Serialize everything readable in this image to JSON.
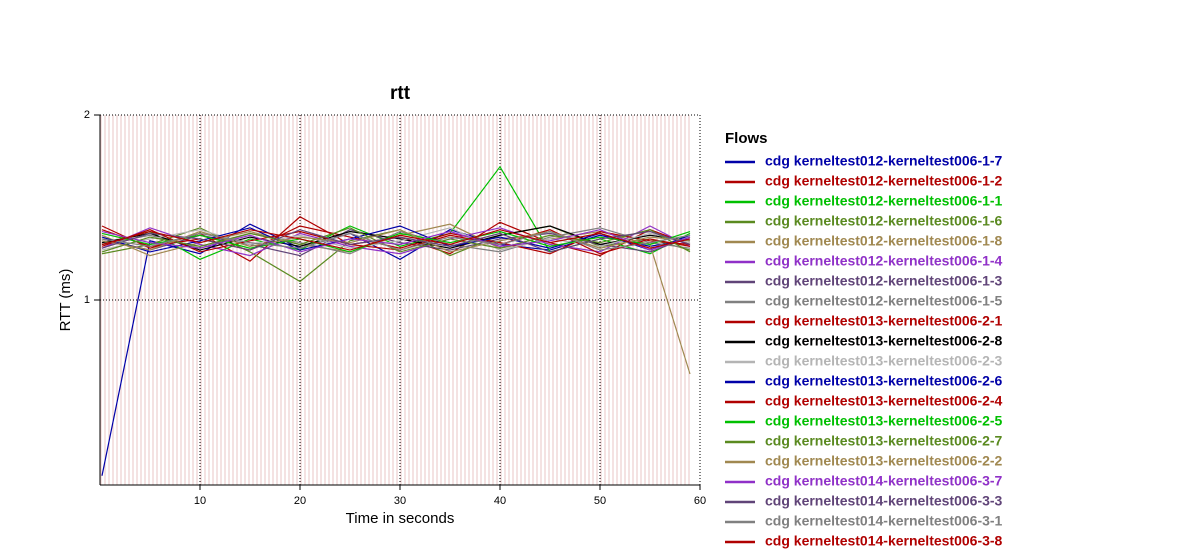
{
  "chart_data": {
    "type": "line",
    "title": "rtt",
    "x_label": "Time in seconds",
    "y_label": "RTT (ms)",
    "x": [
      0.2,
      5,
      10,
      15,
      20,
      25,
      30,
      35,
      40,
      45,
      50,
      55,
      59
    ],
    "xlim": [
      0,
      60
    ],
    "xticks": [
      10,
      20,
      30,
      40,
      50,
      60
    ],
    "ylim": [
      0,
      2
    ],
    "yticks": [
      1,
      2
    ],
    "grid": true,
    "legend_title": "Flows",
    "series": [
      {
        "name": "cdg kerneltest012-kerneltest006-1-7",
        "color": "#0000a8",
        "values": [
          0.05,
          1.32,
          1.25,
          1.41,
          1.28,
          1.36,
          1.22,
          1.38,
          1.3,
          1.27,
          1.35,
          1.29,
          1.33
        ]
      },
      {
        "name": "cdg kerneltest012-kerneltest006-1-2",
        "color": "#b00000",
        "values": [
          1.4,
          1.28,
          1.36,
          1.21,
          1.45,
          1.3,
          1.34,
          1.25,
          1.42,
          1.31,
          1.24,
          1.38,
          1.3
        ]
      },
      {
        "name": "cdg kerneltest012-kerneltest006-1-1",
        "color": "#00c000",
        "values": [
          1.3,
          1.37,
          1.22,
          1.33,
          1.27,
          1.4,
          1.29,
          1.36,
          1.72,
          1.26,
          1.33,
          1.25,
          1.36
        ]
      },
      {
        "name": "cdg kerneltest012-kerneltest006-1-6",
        "color": "#5a8a20",
        "values": [
          1.25,
          1.3,
          1.39,
          1.26,
          1.1,
          1.32,
          1.38,
          1.24,
          1.35,
          1.4,
          1.29,
          1.33,
          1.27
        ]
      },
      {
        "name": "cdg kerneltest012-kerneltest006-1-8",
        "color": "#a08850",
        "values": [
          1.35,
          1.24,
          1.31,
          1.37,
          1.3,
          1.26,
          1.35,
          1.41,
          1.28,
          1.33,
          1.37,
          1.3,
          0.6
        ]
      },
      {
        "name": "cdg kerneltest012-kerneltest006-1-4",
        "color": "#9030c8",
        "values": [
          1.28,
          1.39,
          1.3,
          1.24,
          1.36,
          1.29,
          1.25,
          1.33,
          1.39,
          1.3,
          1.26,
          1.4,
          1.29
        ]
      },
      {
        "name": "cdg kerneltest012-kerneltest006-1-3",
        "color": "#604478",
        "values": [
          1.33,
          1.27,
          1.35,
          1.3,
          1.24,
          1.38,
          1.31,
          1.27,
          1.33,
          1.36,
          1.3,
          1.26,
          1.34
        ]
      },
      {
        "name": "cdg kerneltest012-kerneltest006-1-5",
        "color": "#808080",
        "values": [
          1.3,
          1.35,
          1.28,
          1.36,
          1.31,
          1.25,
          1.37,
          1.3,
          1.26,
          1.34,
          1.39,
          1.31,
          1.28
        ]
      },
      {
        "name": "cdg kerneltest013-kerneltest006-2-1",
        "color": "#b00000",
        "values": [
          1.38,
          1.29,
          1.33,
          1.27,
          1.4,
          1.34,
          1.28,
          1.36,
          1.31,
          1.25,
          1.37,
          1.32,
          1.3
        ]
      },
      {
        "name": "cdg kerneltest013-kerneltest006-2-8",
        "color": "#000000",
        "values": [
          1.31,
          1.36,
          1.27,
          1.34,
          1.29,
          1.37,
          1.33,
          1.28,
          1.35,
          1.4,
          1.3,
          1.35,
          1.32
        ]
      },
      {
        "name": "cdg kerneltest013-kerneltest006-2-3",
        "color": "#b4b4b4",
        "values": [
          1.27,
          1.33,
          1.38,
          1.3,
          1.35,
          1.28,
          1.32,
          1.39,
          1.27,
          1.33,
          1.29,
          1.36,
          1.31
        ]
      },
      {
        "name": "cdg kerneltest013-kerneltest006-2-6",
        "color": "#0000a8",
        "values": [
          1.34,
          1.26,
          1.32,
          1.39,
          1.27,
          1.33,
          1.4,
          1.29,
          1.34,
          1.28,
          1.36,
          1.27,
          1.35
        ]
      },
      {
        "name": "cdg kerneltest013-kerneltest006-2-4",
        "color": "#b00000",
        "values": [
          1.29,
          1.38,
          1.26,
          1.32,
          1.37,
          1.3,
          1.27,
          1.35,
          1.3,
          1.38,
          1.25,
          1.33,
          1.29
        ]
      },
      {
        "name": "cdg kerneltest013-kerneltest006-2-5",
        "color": "#00c000",
        "values": [
          1.36,
          1.3,
          1.35,
          1.28,
          1.33,
          1.26,
          1.36,
          1.31,
          1.37,
          1.29,
          1.34,
          1.3,
          1.37
        ]
      },
      {
        "name": "cdg kerneltest013-kerneltest006-2-7",
        "color": "#5a8a20",
        "values": [
          1.26,
          1.34,
          1.29,
          1.36,
          1.3,
          1.39,
          1.26,
          1.33,
          1.28,
          1.35,
          1.31,
          1.38,
          1.26
        ]
      },
      {
        "name": "cdg kerneltest013-kerneltest006-2-2",
        "color": "#a08850",
        "values": [
          1.32,
          1.27,
          1.37,
          1.29,
          1.34,
          1.31,
          1.38,
          1.26,
          1.32,
          1.37,
          1.28,
          1.34,
          1.32
        ]
      },
      {
        "name": "cdg kerneltest014-kerneltest006-3-7",
        "color": "#9030c8",
        "values": [
          1.37,
          1.31,
          1.28,
          1.35,
          1.26,
          1.33,
          1.3,
          1.37,
          1.29,
          1.32,
          1.38,
          1.27,
          1.34
        ]
      },
      {
        "name": "cdg kerneltest014-kerneltest006-3-3",
        "color": "#604478",
        "values": [
          1.28,
          1.36,
          1.33,
          1.27,
          1.38,
          1.3,
          1.34,
          1.29,
          1.36,
          1.26,
          1.33,
          1.37,
          1.3
        ]
      },
      {
        "name": "cdg kerneltest014-kerneltest006-3-1",
        "color": "#808080",
        "values": [
          1.33,
          1.29,
          1.36,
          1.31,
          1.28,
          1.36,
          1.27,
          1.34,
          1.3,
          1.37,
          1.27,
          1.31,
          1.35
        ]
      },
      {
        "name": "cdg kerneltest014-kerneltest006-3-8",
        "color": "#b00000",
        "values": [
          1.3,
          1.37,
          1.31,
          1.38,
          1.33,
          1.27,
          1.35,
          1.3,
          1.38,
          1.31,
          1.36,
          1.28,
          1.33
        ]
      }
    ]
  }
}
